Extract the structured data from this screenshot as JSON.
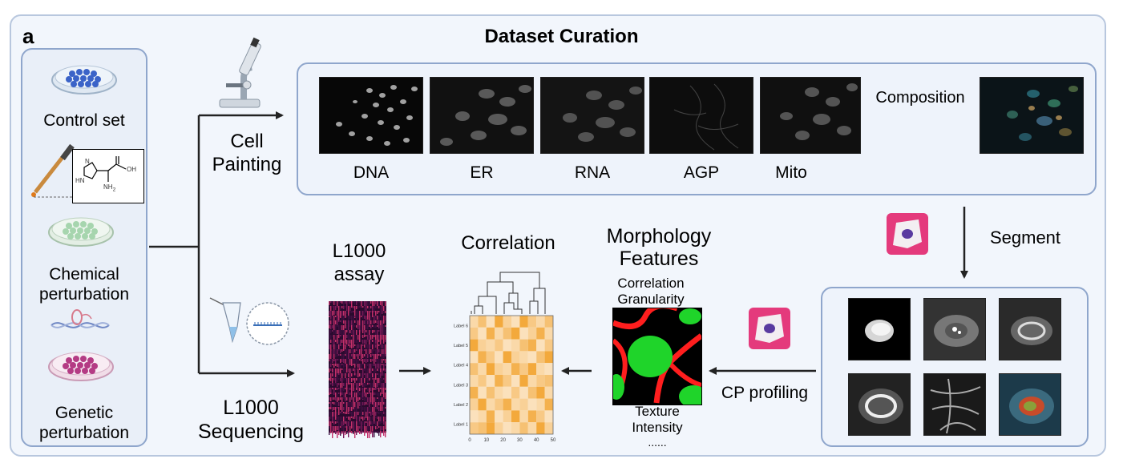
{
  "figure": {
    "panel_letter": "a",
    "title": "Dataset Curation"
  },
  "left_panel": {
    "control": "Control set",
    "chemical": "Chemical perturbation",
    "chemical_l1": "Chemical",
    "chemical_l2": "perturbation",
    "genetic_l1": "Genetic",
    "genetic_l2": "perturbation",
    "molecule": {
      "oh": "OH",
      "n": "N",
      "hn": "HN",
      "nh2": "NH",
      "nh2_sub": "2"
    }
  },
  "cell_painting": {
    "label_l1": "Cell",
    "label_l2": "Painting",
    "channels": [
      "DNA",
      "ER",
      "RNA",
      "AGP",
      "Mito"
    ],
    "composition": "Composition"
  },
  "segment": {
    "label": "Segment"
  },
  "cp_profiling": {
    "label": "CP profiling"
  },
  "morphology": {
    "title_l1": "Morphology",
    "title_l2": "Features",
    "top1": "Correlation",
    "top2": "Granularity",
    "bottom1": "Texture",
    "bottom2": "Intensity",
    "ellipsis": "......"
  },
  "correlation": {
    "title": "Correlation"
  },
  "l1000": {
    "assay_l1": "L1000",
    "assay_l2": "assay",
    "seq_l1": "L1000",
    "seq_l2": "Sequencing"
  },
  "chart_data": {
    "type": "heatmap",
    "title": "Correlation",
    "y_tick_labels": [
      "Label 6",
      "Label 5",
      "Label 4",
      "Label 3",
      "Label 2",
      "Label 1"
    ],
    "x_tick_labels": [
      "0",
      "10",
      "20",
      "30",
      "40",
      "50"
    ],
    "rows": 10,
    "cols": 10,
    "values": [
      [
        0.3,
        0.6,
        0.2,
        0.9,
        0.4,
        0.2,
        0.9,
        0.5,
        0.3,
        0.6
      ],
      [
        0.5,
        0.2,
        0.8,
        0.3,
        0.6,
        0.9,
        0.2,
        0.4,
        0.8,
        0.3
      ],
      [
        0.9,
        0.4,
        0.3,
        0.5,
        0.2,
        0.3,
        0.6,
        0.8,
        0.2,
        0.5
      ],
      [
        0.2,
        0.8,
        0.5,
        0.2,
        0.9,
        0.4,
        0.3,
        0.2,
        0.6,
        0.9
      ],
      [
        0.6,
        0.3,
        0.9,
        0.4,
        0.3,
        0.8,
        0.5,
        0.9,
        0.3,
        0.2
      ],
      [
        0.3,
        0.5,
        0.2,
        0.8,
        0.5,
        0.2,
        0.9,
        0.3,
        0.5,
        0.6
      ],
      [
        0.8,
        0.2,
        0.6,
        0.3,
        0.2,
        0.5,
        0.2,
        0.6,
        0.9,
        0.3
      ],
      [
        0.4,
        0.9,
        0.3,
        0.5,
        0.8,
        0.3,
        0.4,
        0.2,
        0.3,
        0.8
      ],
      [
        0.2,
        0.3,
        0.8,
        0.2,
        0.4,
        0.9,
        0.3,
        0.8,
        0.5,
        0.2
      ],
      [
        0.5,
        0.6,
        0.9,
        0.4,
        0.2,
        0.3,
        0.6,
        0.3,
        0.9,
        0.4
      ]
    ]
  },
  "colors": {
    "panel_border": "#8fa6cc",
    "heat_low": "#fdf1e0",
    "heat_high": "#f2a12a",
    "nucleus_green": "#1fd42a",
    "membrane_red": "#ff1e1e",
    "icon_pink": "#e43a7c"
  },
  "icons": [
    "microscope-icon",
    "petri-dish-icon",
    "dropper-icon",
    "tube-icon",
    "cell-icon"
  ]
}
